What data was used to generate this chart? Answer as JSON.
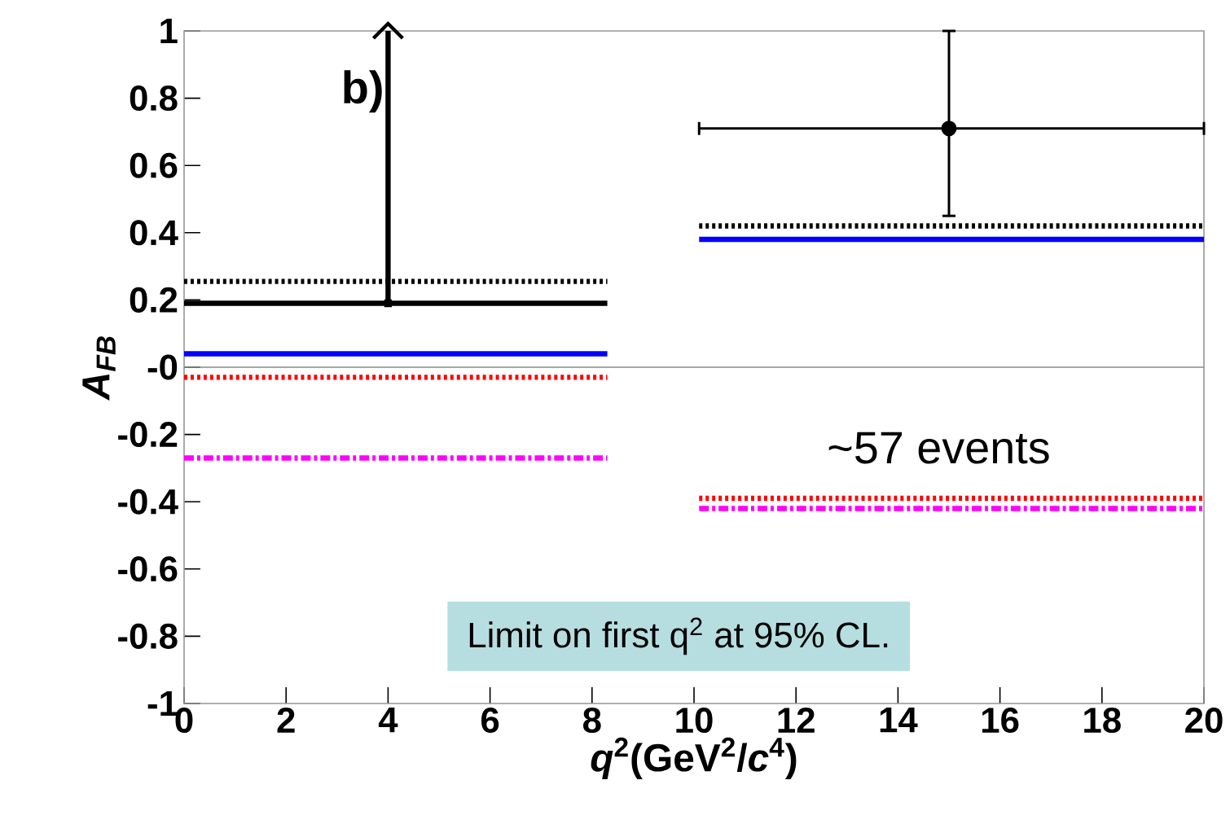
{
  "chart_data": {
    "type": "line",
    "xlabel": "*q*$^{2}$(GeV$^{2}$/*c*$^{4}$)",
    "ylabel": "*A*$_{FB}$",
    "xlim": [
      0,
      20
    ],
    "ylim": [
      -1,
      1
    ],
    "xticks": [
      0,
      2,
      4,
      6,
      8,
      10,
      12,
      14,
      16,
      18,
      20
    ],
    "yticks": [
      -1,
      -0.8,
      -0.6,
      -0.4,
      -0.2,
      {
        "value": 0,
        "label": "-0"
      },
      0.2,
      0.4,
      0.6,
      0.8,
      1
    ],
    "series": [
      {
        "color": "#000000",
        "line_style": "dotted",
        "x": [
          0,
          8.3
        ],
        "values": [
          0.255,
          0.255
        ]
      },
      {
        "color": "#000000",
        "line_style": "dotted",
        "x": [
          10.1,
          20
        ],
        "values": [
          0.42,
          0.42
        ]
      },
      {
        "color": "#000000",
        "line_style": "solid",
        "x": [
          0,
          8.3
        ],
        "values": [
          0.19,
          0.19
        ]
      },
      {
        "color": "#0000ff",
        "line_style": "solid",
        "x": [
          0,
          8.3
        ],
        "values": [
          0.04,
          0.04
        ]
      },
      {
        "color": "#0000ff",
        "line_style": "solid",
        "x": [
          10.1,
          20
        ],
        "values": [
          0.38,
          0.38
        ]
      },
      {
        "color": "#ff0000",
        "line_style": "dotted",
        "x": [
          0,
          8.3
        ],
        "values": [
          -0.03,
          -0.03
        ]
      },
      {
        "color": "#ff0000",
        "line_style": "dotted",
        "x": [
          10.1,
          20
        ],
        "values": [
          -0.39,
          -0.39
        ]
      },
      {
        "color": "#ff00ff",
        "line_style": "dashed",
        "x": [
          0,
          8.3
        ],
        "values": [
          -0.27,
          -0.27
        ]
      },
      {
        "color": "#ff00ff",
        "line_style": "dashed",
        "x": [
          10.1,
          20
        ],
        "values": [
          -0.42,
          -0.42
        ]
      },
      {
        "type": "scatter",
        "color": "#000000",
        "marker": "square",
        "x": [
          4
        ],
        "values": [
          0.19
        ],
        "errors": [
          [
            0.19,
            1
          ]
        ]
      },
      {
        "type": "scatter",
        "color": "#000000",
        "marker": "circle",
        "x": [
          15
        ],
        "values": [
          0.71
        ],
        "errors": [
          [
            0.45,
            1
          ]
        ],
        "xerrors": [
          [
            10.1,
            20
          ]
        ]
      }
    ],
    "ref_lines": [
      {
        "axis": "y",
        "value": 0,
        "color": "#888888"
      }
    ],
    "annotations": [
      "b)",
      "~57 events",
      "Limit on first q$^{2}$ at 95% CL."
    ]
  }
}
